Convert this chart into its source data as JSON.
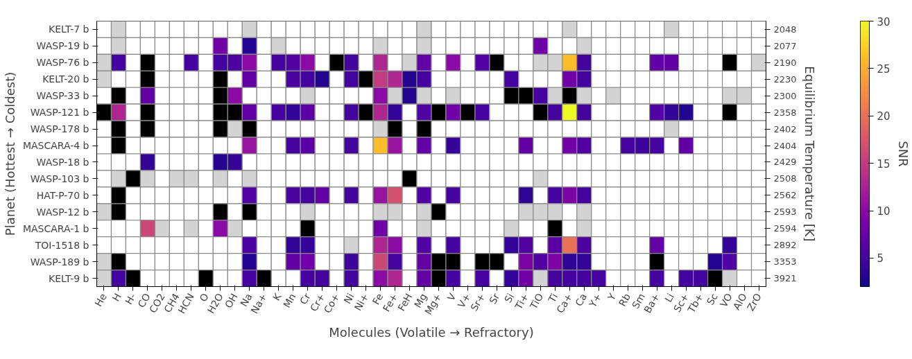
{
  "chart_data": {
    "type": "heatmap",
    "xlabel": "Molecules (Volatile → Refractory)",
    "ylabel": "Planet (Hottest → Coldest)",
    "y2label": "Equilibrium Temperature [K]",
    "clabel": "SNR",
    "clim": [
      2,
      30
    ],
    "cticks": [
      5,
      10,
      15,
      20,
      25,
      30
    ],
    "categories": [
      "He",
      "H",
      "H-",
      "CO",
      "CO2",
      "CH4",
      "HCN",
      "O",
      "H2O",
      "OH",
      "Na",
      "Na+",
      "K",
      "Mn",
      "Cr",
      "Cr+",
      "Co+",
      "Ni",
      "Ni+",
      "Fe",
      "Fe+",
      "FeH",
      "Mg",
      "Mg+",
      "V",
      "V+",
      "Sr+",
      "Sr",
      "Si",
      "Ti+",
      "TiO",
      "Ti",
      "Ca+",
      "Ca",
      "Y+",
      "Y",
      "Rb",
      "Sm",
      "Ba+",
      "Li",
      "Sc+",
      "Tb+",
      "Sc",
      "VO",
      "AlO",
      "ZrO"
    ],
    "y_categories": [
      "KELT-7 b",
      "WASP-19 b",
      "WASP-76 b",
      "KELT-20 b",
      "WASP-33 b",
      "WASP-121 b",
      "WASP-178 b",
      "MASCARA-4 b",
      "WASP-18 b",
      "WASP-103 b",
      "HAT-P-70 b",
      "WASP-12 b",
      "MASCARA-1 b",
      "TOI-1518 b",
      "WASP-189 b",
      "KELT-9 b"
    ],
    "y2_categories": [
      "2048",
      "2077",
      "2190",
      "2230",
      "2300",
      "2358",
      "2402",
      "2404",
      "2429",
      "2508",
      "2562",
      "2593",
      "2594",
      "2892",
      "3353",
      "3921"
    ],
    "cells": [
      [
        null,
        null,
        null,
        null,
        null,
        null,
        null,
        null,
        null,
        null,
        null,
        null,
        null,
        null,
        null,
        null,
        null,
        null,
        null,
        null,
        null,
        null,
        null,
        null,
        null,
        null,
        null,
        null,
        null,
        null,
        null,
        null,
        null,
        null,
        null,
        null,
        null,
        null,
        null,
        null,
        null,
        null,
        null,
        null,
        null,
        null
      ],
      [
        null,
        null,
        null,
        null,
        null,
        null,
        null,
        null,
        8,
        null,
        3,
        null,
        null,
        null,
        null,
        null,
        null,
        null,
        null,
        null,
        null,
        null,
        null,
        null,
        null,
        null,
        null,
        null,
        null,
        null,
        8,
        null,
        null,
        null,
        null,
        null,
        null,
        null,
        null,
        null,
        null,
        null,
        null,
        null,
        null,
        null
      ],
      [
        null,
        5,
        null,
        null,
        null,
        null,
        5,
        null,
        5,
        5.5,
        10,
        null,
        5,
        6,
        10,
        null,
        null,
        5,
        null,
        13,
        null,
        null,
        7,
        null,
        10,
        null,
        6,
        null,
        null,
        null,
        null,
        null,
        26,
        5,
        null,
        null,
        null,
        null,
        7,
        7,
        null,
        null,
        null,
        null,
        null,
        null
      ],
      [
        null,
        null,
        null,
        null,
        null,
        null,
        null,
        null,
        null,
        null,
        7,
        null,
        null,
        5.5,
        5,
        3,
        null,
        5,
        null,
        15,
        13,
        3,
        5,
        null,
        null,
        null,
        null,
        null,
        5,
        null,
        null,
        null,
        8,
        5,
        null,
        null,
        null,
        null,
        null,
        null,
        null,
        null,
        null,
        null,
        null,
        null
      ],
      [
        null,
        null,
        null,
        7,
        null,
        null,
        null,
        null,
        null,
        10,
        null,
        null,
        null,
        null,
        null,
        null,
        null,
        null,
        null,
        10,
        null,
        3,
        null,
        null,
        null,
        null,
        null,
        null,
        null,
        null,
        5,
        null,
        null,
        null,
        null,
        null,
        null,
        null,
        null,
        null,
        null,
        null,
        null,
        null,
        null,
        null
      ],
      [
        null,
        13,
        null,
        null,
        null,
        null,
        null,
        null,
        null,
        null,
        7,
        null,
        5,
        4,
        6.5,
        null,
        null,
        5,
        null,
        13,
        4,
        null,
        6,
        null,
        8,
        null,
        5,
        null,
        null,
        null,
        null,
        5,
        30,
        5,
        null,
        null,
        null,
        null,
        6,
        4,
        3,
        null,
        null,
        null,
        null,
        null
      ],
      [
        null,
        null,
        null,
        null,
        null,
        null,
        null,
        null,
        null,
        null,
        null,
        null,
        null,
        null,
        null,
        null,
        null,
        null,
        null,
        null,
        null,
        null,
        null,
        null,
        null,
        null,
        null,
        null,
        null,
        null,
        null,
        null,
        null,
        null,
        null,
        null,
        null,
        null,
        null,
        null,
        null,
        null,
        null,
        null,
        null,
        null
      ],
      [
        null,
        null,
        null,
        null,
        null,
        null,
        null,
        null,
        null,
        null,
        11,
        null,
        null,
        5,
        6.5,
        null,
        null,
        5,
        null,
        26,
        11,
        null,
        7,
        null,
        4,
        null,
        null,
        null,
        null,
        7,
        null,
        null,
        8,
        6,
        null,
        null,
        5,
        4.5,
        5,
        null,
        7,
        null,
        null,
        null,
        null,
        null
      ],
      [
        null,
        null,
        null,
        4,
        null,
        null,
        null,
        null,
        3,
        4,
        null,
        null,
        null,
        null,
        null,
        null,
        null,
        null,
        null,
        null,
        null,
        null,
        null,
        null,
        null,
        null,
        null,
        null,
        null,
        null,
        null,
        null,
        null,
        null,
        null,
        null,
        null,
        null,
        null,
        null,
        null,
        null,
        null,
        null,
        null,
        null
      ],
      [
        null,
        null,
        null,
        null,
        null,
        null,
        null,
        null,
        null,
        null,
        null,
        null,
        null,
        null,
        null,
        null,
        null,
        null,
        null,
        null,
        null,
        null,
        null,
        null,
        null,
        null,
        null,
        null,
        null,
        null,
        null,
        null,
        null,
        null,
        null,
        null,
        null,
        null,
        null,
        null,
        null,
        null,
        null,
        null,
        null,
        null
      ],
      [
        null,
        null,
        null,
        null,
        null,
        null,
        null,
        null,
        null,
        null,
        6,
        null,
        null,
        5.5,
        5,
        7,
        null,
        5,
        null,
        11,
        17,
        null,
        6,
        null,
        5,
        null,
        null,
        null,
        null,
        3.5,
        null,
        5,
        9,
        5,
        null,
        null,
        null,
        null,
        null,
        null,
        null,
        null,
        null,
        null,
        null,
        null
      ],
      [
        null,
        null,
        null,
        null,
        null,
        null,
        null,
        null,
        null,
        null,
        null,
        null,
        null,
        null,
        null,
        null,
        null,
        null,
        null,
        null,
        null,
        null,
        null,
        null,
        null,
        null,
        null,
        null,
        null,
        null,
        null,
        null,
        null,
        null,
        null,
        null,
        null,
        null,
        null,
        null,
        null,
        null,
        null,
        null,
        null,
        null
      ],
      [
        null,
        null,
        null,
        16,
        null,
        null,
        null,
        null,
        10,
        null,
        null,
        null,
        null,
        null,
        null,
        null,
        null,
        null,
        null,
        8,
        null,
        null,
        null,
        null,
        null,
        null,
        null,
        null,
        null,
        null,
        null,
        null,
        null,
        null,
        null,
        null,
        null,
        null,
        null,
        null,
        null,
        null,
        null,
        null,
        null,
        null
      ],
      [
        null,
        null,
        null,
        null,
        null,
        null,
        null,
        null,
        null,
        null,
        5.5,
        null,
        null,
        4,
        4,
        null,
        null,
        null,
        null,
        13,
        10,
        null,
        6,
        null,
        5,
        null,
        null,
        null,
        4,
        6,
        null,
        6.5,
        20,
        5.5,
        null,
        null,
        null,
        null,
        7,
        null,
        null,
        null,
        null,
        4,
        null,
        null
      ],
      [
        null,
        null,
        null,
        null,
        null,
        null,
        null,
        null,
        null,
        null,
        3,
        null,
        null,
        7,
        8,
        null,
        null,
        4.5,
        null,
        16,
        5,
        null,
        7,
        null,
        null,
        null,
        null,
        null,
        null,
        9,
        6,
        9,
        3.5,
        4,
        null,
        null,
        null,
        null,
        null,
        null,
        null,
        null,
        3,
        6,
        null,
        null
      ],
      [
        null,
        5,
        null,
        null,
        null,
        null,
        null,
        null,
        null,
        null,
        5,
        null,
        null,
        null,
        5,
        5,
        null,
        5,
        null,
        10,
        13,
        null,
        7,
        null,
        5,
        null,
        5,
        null,
        4,
        8,
        null,
        5,
        5,
        5,
        5,
        null,
        null,
        null,
        5,
        null,
        5,
        5,
        null,
        null,
        null,
        null
      ]
    ],
    "colors": [
      [
        null,
        "#d3d3d3",
        null,
        null,
        null,
        null,
        null,
        null,
        null,
        null,
        "#d3d3d3",
        null,
        null,
        null,
        null,
        null,
        null,
        null,
        null,
        null,
        null,
        null,
        "#d3d3d3",
        null,
        null,
        null,
        null,
        null,
        null,
        null,
        null,
        null,
        "#d3d3d3",
        null,
        null,
        null,
        null,
        null,
        null,
        "#d3d3d3",
        null,
        null,
        null,
        null,
        null,
        null
      ],
      [
        null,
        "#d3d3d3",
        null,
        null,
        null,
        null,
        null,
        null,
        null,
        null,
        null,
        null,
        "#d3d3d3",
        null,
        null,
        null,
        null,
        null,
        null,
        "#d3d3d3",
        null,
        null,
        "#d3d3d3",
        null,
        null,
        null,
        null,
        null,
        null,
        null,
        null,
        null,
        null,
        "#d3d3d3",
        null,
        null,
        null,
        null,
        null,
        null,
        null,
        null,
        null,
        null,
        null,
        null
      ],
      [
        "#d3d3d3",
        null,
        null,
        "#000000",
        null,
        null,
        null,
        null,
        null,
        null,
        null,
        null,
        null,
        null,
        null,
        null,
        "#000000",
        null,
        null,
        null,
        null,
        "#d3d3d3",
        null,
        null,
        null,
        null,
        null,
        "#000000",
        null,
        null,
        "#d3d3d3",
        "#d3d3d3",
        null,
        null,
        null,
        null,
        null,
        null,
        null,
        null,
        null,
        null,
        null,
        "#000000",
        null,
        "#d3d3d3"
      ],
      [
        "#d3d3d3",
        null,
        null,
        "#000000",
        null,
        null,
        null,
        null,
        "#000000",
        null,
        null,
        null,
        null,
        null,
        null,
        null,
        null,
        null,
        "#000000",
        null,
        null,
        null,
        null,
        null,
        null,
        null,
        null,
        null,
        null,
        null,
        null,
        null,
        null,
        null,
        null,
        null,
        null,
        null,
        null,
        null,
        null,
        null,
        null,
        null,
        null,
        null
      ],
      [
        null,
        "#000000",
        null,
        null,
        null,
        null,
        null,
        null,
        "#000000",
        null,
        null,
        null,
        null,
        null,
        "#d3d3d3",
        null,
        null,
        null,
        null,
        null,
        "#d3d3d3",
        null,
        "#d3d3d3",
        null,
        "#d3d3d3",
        null,
        null,
        null,
        "#000000",
        "#000000",
        null,
        "#d3d3d3",
        "#000000",
        "#d3d3d3",
        null,
        "#d3d3d3",
        null,
        null,
        null,
        null,
        null,
        null,
        null,
        "#d3d3d3",
        "#d3d3d3",
        null
      ],
      [
        "#000000",
        null,
        null,
        "#000000",
        null,
        null,
        null,
        null,
        "#000000",
        "#000000",
        null,
        null,
        null,
        null,
        null,
        null,
        null,
        null,
        "#000000",
        null,
        null,
        null,
        null,
        "#000000",
        null,
        "#000000",
        null,
        null,
        null,
        null,
        "#000000",
        null,
        null,
        null,
        null,
        null,
        null,
        null,
        null,
        null,
        null,
        null,
        null,
        "#000000",
        null,
        null
      ],
      [
        null,
        "#000000",
        null,
        "#000000",
        null,
        null,
        null,
        null,
        "#000000",
        "#d3d3d3",
        "#000000",
        null,
        null,
        null,
        null,
        null,
        null,
        null,
        null,
        "#d3d3d3",
        "#000000",
        null,
        "#000000",
        null,
        null,
        null,
        null,
        null,
        null,
        null,
        null,
        null,
        null,
        null,
        null,
        null,
        null,
        null,
        null,
        "#d3d3d3",
        null,
        null,
        null,
        null,
        null,
        null
      ],
      [
        null,
        "#000000",
        null,
        null,
        null,
        null,
        null,
        null,
        null,
        null,
        null,
        null,
        null,
        null,
        null,
        null,
        null,
        null,
        null,
        null,
        null,
        null,
        null,
        null,
        null,
        null,
        null,
        null,
        null,
        null,
        null,
        null,
        null,
        null,
        null,
        null,
        null,
        null,
        null,
        null,
        null,
        null,
        null,
        null,
        null,
        null
      ],
      [
        null,
        null,
        null,
        null,
        null,
        null,
        null,
        null,
        null,
        null,
        null,
        null,
        null,
        null,
        null,
        null,
        null,
        null,
        null,
        null,
        null,
        null,
        null,
        null,
        null,
        null,
        null,
        null,
        null,
        null,
        null,
        null,
        null,
        null,
        null,
        null,
        null,
        null,
        null,
        null,
        null,
        null,
        null,
        null,
        null,
        null
      ],
      [
        null,
        "#d3d3d3",
        "#000000",
        "#d3d3d3",
        null,
        "#d3d3d3",
        "#d3d3d3",
        null,
        "#d3d3d3",
        null,
        "#d3d3d3",
        null,
        null,
        null,
        null,
        null,
        null,
        null,
        null,
        null,
        null,
        "#000000",
        null,
        null,
        null,
        null,
        null,
        null,
        null,
        null,
        "#d3d3d3",
        null,
        null,
        null,
        null,
        null,
        null,
        null,
        null,
        null,
        null,
        null,
        null,
        null,
        null,
        null
      ],
      [
        null,
        "#000000",
        null,
        null,
        null,
        null,
        null,
        null,
        null,
        null,
        null,
        null,
        null,
        null,
        null,
        null,
        null,
        null,
        null,
        null,
        null,
        null,
        null,
        null,
        null,
        null,
        null,
        null,
        null,
        null,
        null,
        null,
        null,
        null,
        null,
        null,
        null,
        null,
        null,
        null,
        null,
        null,
        null,
        null,
        null,
        null
      ],
      [
        "#d3d3d3",
        "#000000",
        null,
        null,
        null,
        null,
        null,
        null,
        "#000000",
        null,
        "#000000",
        null,
        null,
        null,
        "#d3d3d3",
        null,
        null,
        null,
        null,
        "#d3d3d3",
        "#d3d3d3",
        null,
        "#d3d3d3",
        "#000000",
        null,
        null,
        null,
        null,
        null,
        "#d3d3d3",
        "#d3d3d3",
        "#d3d3d3",
        null,
        "#d3d3d3",
        null,
        null,
        null,
        null,
        null,
        null,
        null,
        null,
        null,
        null,
        null,
        null
      ],
      [
        null,
        null,
        null,
        null,
        "#d3d3d3",
        null,
        "#d3d3d3",
        null,
        null,
        "#d3d3d3",
        null,
        null,
        null,
        null,
        "#000000",
        null,
        null,
        null,
        null,
        null,
        null,
        null,
        "#d3d3d3",
        null,
        null,
        null,
        null,
        null,
        "#d3d3d3",
        null,
        null,
        "#000000",
        null,
        "#d3d3d3",
        null,
        null,
        null,
        null,
        null,
        null,
        null,
        null,
        null,
        null,
        null,
        null
      ],
      [
        null,
        null,
        null,
        null,
        null,
        null,
        null,
        null,
        null,
        null,
        null,
        null,
        null,
        null,
        null,
        null,
        null,
        "#d3d3d3",
        null,
        null,
        null,
        null,
        null,
        null,
        null,
        null,
        null,
        null,
        null,
        null,
        null,
        null,
        null,
        null,
        null,
        null,
        null,
        null,
        null,
        null,
        null,
        null,
        null,
        null,
        null,
        null
      ],
      [
        "#d3d3d3",
        "#000000",
        null,
        null,
        null,
        null,
        null,
        null,
        null,
        null,
        null,
        null,
        null,
        null,
        null,
        null,
        null,
        null,
        null,
        null,
        null,
        null,
        null,
        "#000000",
        "#000000",
        null,
        "#000000",
        "#000000",
        null,
        null,
        null,
        null,
        null,
        null,
        null,
        null,
        null,
        null,
        "#000000",
        null,
        null,
        null,
        null,
        null,
        null,
        null
      ],
      [
        "#d3d3d3",
        null,
        "#000000",
        null,
        null,
        null,
        null,
        "#000000",
        null,
        null,
        null,
        "#000000",
        null,
        null,
        null,
        null,
        null,
        null,
        null,
        null,
        null,
        null,
        null,
        "#000000",
        null,
        null,
        null,
        null,
        null,
        null,
        "#d3d3d3",
        null,
        null,
        null,
        null,
        null,
        null,
        null,
        null,
        null,
        null,
        null,
        "#000000",
        "#d3d3d3",
        null,
        null
      ]
    ]
  }
}
